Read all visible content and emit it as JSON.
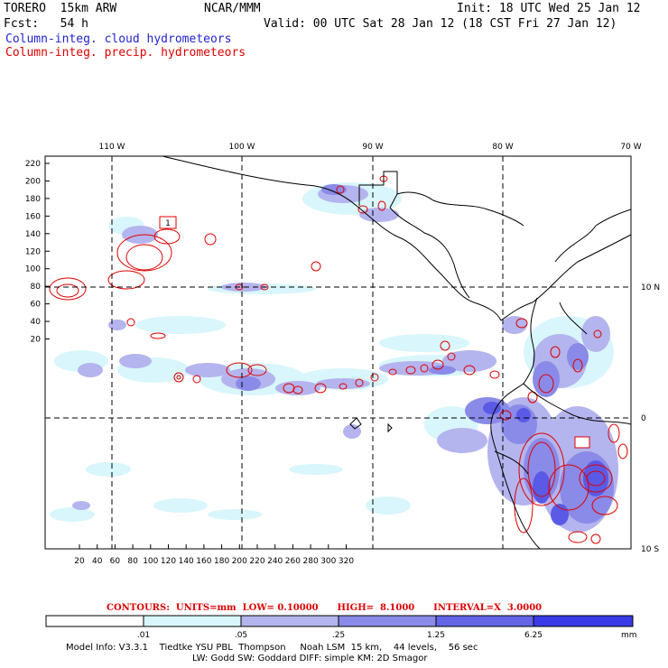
{
  "header": {
    "model": "TORERO  15km ARW",
    "org": "NCAR/MMM",
    "init": "Init: 18 UTC Wed 25 Jan 12",
    "fcst": "Fcst:   54 h",
    "valid": "Valid: 00 UTC Sat 28 Jan 12 (18 CST Fri 27 Jan 12)",
    "field1": "Column-integ. cloud hydrometeors",
    "field2": "Column-integ. precip. hydrometeors"
  },
  "colors": {
    "cloud_title": "#2424d0",
    "precip_title": "#e00000",
    "shade1": "#d8f6fb",
    "shade2": "#b4b4ee",
    "shade3": "#8a8ae8",
    "shade4": "#6464e6",
    "shade5": "#3a3ae6",
    "contour": "#e00000"
  },
  "map": {
    "lon_labels": [
      "110 W",
      "100 W",
      "90 W",
      "80 W",
      "70 W"
    ],
    "lat_labels": [
      "10 N",
      "0",
      "10 S"
    ],
    "y_ticks": [
      "220",
      "200",
      "180",
      "160",
      "140",
      "120",
      "100",
      "80",
      "60",
      "40",
      "20"
    ],
    "x_ticks": [
      "20",
      "40",
      "60",
      "80",
      "100",
      "120",
      "140",
      "160",
      "180",
      "200",
      "220",
      "240",
      "260",
      "280",
      "300",
      "320"
    ],
    "contour_label": "1"
  },
  "contours_line": "CONTOURS:  UNITS=mm  LOW= 0.10000      HIGH=  8.1000      INTERVAL=X  3.0000",
  "colorbar": {
    "labels": [
      ".01",
      ".05",
      ".25",
      "1.25",
      "6.25"
    ],
    "unit": "mm"
  },
  "model_info": {
    "line1": "Model Info: V3.3.1    Tiedtke YSU PBL  Thompson     Noah LSM  15 km,    44 levels,    56 sec",
    "line2": "LW: Godd SW: Goddard DIFF: simple KM: 2D Smagor"
  }
}
